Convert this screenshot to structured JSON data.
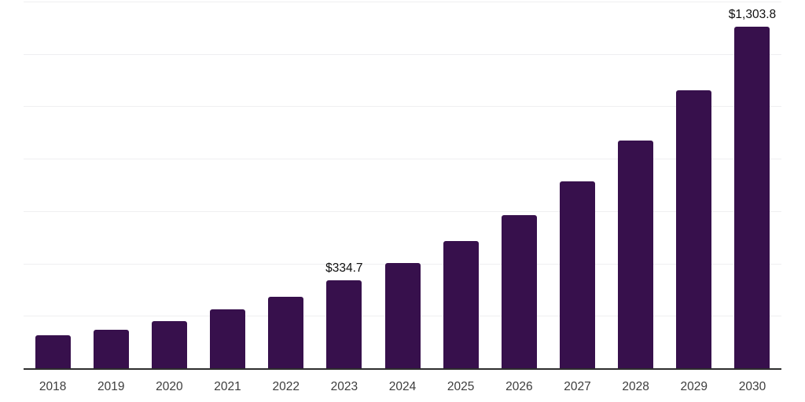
{
  "chart_data": {
    "type": "bar",
    "title": "",
    "xlabel": "",
    "ylabel": "",
    "categories": [
      "2018",
      "2019",
      "2020",
      "2021",
      "2022",
      "2023",
      "2024",
      "2025",
      "2026",
      "2027",
      "2028",
      "2029",
      "2030"
    ],
    "values": [
      127,
      148,
      181,
      226,
      274,
      334.7,
      403,
      485,
      585,
      714,
      870,
      1061,
      1303.8
    ],
    "data_labels": [
      "",
      "",
      "",
      "",
      "",
      "$334.7",
      "",
      "",
      "",
      "",
      "",
      "",
      "$1,303.8"
    ],
    "ylim": [
      0,
      1400
    ],
    "gridline_values": [
      200,
      400,
      600,
      800,
      1000,
      1200,
      1400
    ],
    "grid": true,
    "legend": false,
    "y_axis_tick_labels_visible": false,
    "colors": {
      "bar": "#37104C",
      "gridline": "#efeff1",
      "axis_line": "#2e2e2e",
      "value_label_text": "#0f0f0f",
      "x_tick_text": "#3d3d3d",
      "background": "#ffffff"
    }
  }
}
